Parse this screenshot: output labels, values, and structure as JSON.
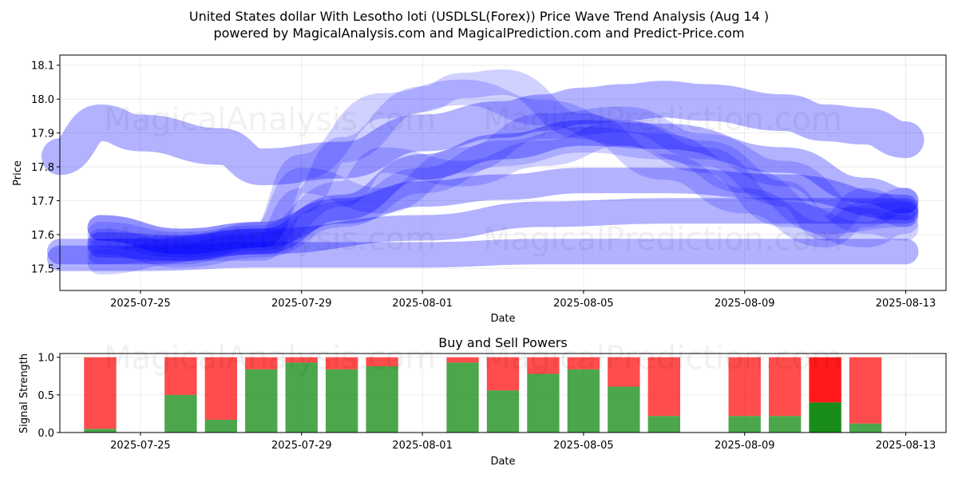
{
  "title_line1": "United States dollar With Lesotho loti (USDLSL(Forex)) Price Wave Trend Analysis (Aug 14 )",
  "title_line2": "powered by MagicalAnalysis.com and MagicalPrediction.com and Predict-Price.com",
  "watermarks": {
    "left": "MagicalAnalysis.com",
    "right": "MagicalPrediction.com"
  },
  "colors": {
    "wave": "#0000ff",
    "buy": "#008000",
    "sell": "#ff0000"
  },
  "chart_data": [
    {
      "type": "line",
      "title": "",
      "xlabel": "Date",
      "ylabel": "Price",
      "x_ticks": [
        "2025-07-25",
        "2025-07-29",
        "2025-08-01",
        "2025-08-05",
        "2025-08-09",
        "2025-08-13"
      ],
      "y_ticks": [
        17.5,
        17.6,
        17.7,
        17.8,
        17.9,
        18.0,
        18.1
      ],
      "xlim": [
        "2025-07-23",
        "2025-08-14"
      ],
      "ylim": [
        17.435,
        18.13
      ],
      "grid": true,
      "series": [
        {
          "opacity": 0.3,
          "x": [
            "2025-07-23",
            "2025-07-24",
            "2025-07-25",
            "2025-07-27",
            "2025-07-28",
            "2025-07-30",
            "2025-08-01",
            "2025-08-03",
            "2025-08-04",
            "2025-08-05",
            "2025-08-06",
            "2025-08-07",
            "2025-08-08",
            "2025-08-10",
            "2025-08-11",
            "2025-08-12",
            "2025-08-13"
          ],
          "y": [
            17.83,
            17.93,
            17.9,
            17.86,
            17.8,
            17.82,
            17.9,
            17.94,
            17.96,
            17.98,
            17.99,
            18.0,
            17.99,
            17.96,
            17.93,
            17.92,
            17.88
          ]
        },
        {
          "opacity": 0.3,
          "x": [
            "2025-07-23",
            "2025-07-25",
            "2025-07-28",
            "2025-08-01",
            "2025-08-04",
            "2025-08-07",
            "2025-08-10",
            "2025-08-13"
          ],
          "y": [
            17.55,
            17.55,
            17.58,
            17.62,
            17.66,
            17.67,
            17.67,
            17.67
          ]
        },
        {
          "opacity": 0.3,
          "x": [
            "2025-07-23",
            "2025-07-25",
            "2025-07-28",
            "2025-08-01",
            "2025-08-04",
            "2025-08-07",
            "2025-08-10",
            "2025-08-13"
          ],
          "y": [
            17.53,
            17.53,
            17.54,
            17.54,
            17.55,
            17.55,
            17.55,
            17.55
          ]
        },
        {
          "opacity": 0.3,
          "x": [
            "2025-07-24",
            "2025-07-26",
            "2025-07-28",
            "2025-07-30",
            "2025-08-01",
            "2025-08-03",
            "2025-08-05",
            "2025-08-07",
            "2025-08-10",
            "2025-08-13"
          ],
          "y": [
            17.62,
            17.58,
            17.6,
            17.67,
            17.72,
            17.74,
            17.76,
            17.76,
            17.74,
            17.68
          ]
        },
        {
          "opacity": 0.3,
          "x": [
            "2025-07-24",
            "2025-07-26",
            "2025-07-28",
            "2025-07-30",
            "2025-08-01",
            "2025-08-03",
            "2025-08-05",
            "2025-08-07",
            "2025-08-10",
            "2025-08-12",
            "2025-08-13"
          ],
          "y": [
            17.57,
            17.56,
            17.58,
            17.68,
            17.8,
            17.86,
            17.9,
            17.89,
            17.82,
            17.73,
            17.7
          ]
        },
        {
          "opacity": 0.18,
          "x": [
            "2025-07-24",
            "2025-07-26",
            "2025-07-28",
            "2025-07-29",
            "2025-07-31",
            "2025-08-02",
            "2025-08-04",
            "2025-08-06",
            "2025-08-08",
            "2025-08-10",
            "2025-08-12",
            "2025-08-13"
          ],
          "y": [
            17.62,
            17.58,
            17.6,
            17.8,
            17.98,
            18.02,
            17.96,
            17.9,
            17.82,
            17.66,
            17.6,
            17.64
          ]
        },
        {
          "opacity": 0.18,
          "x": [
            "2025-07-24",
            "2025-07-26",
            "2025-07-28",
            "2025-07-29",
            "2025-07-30",
            "2025-08-01",
            "2025-08-02",
            "2025-08-03",
            "2025-08-05",
            "2025-08-07",
            "2025-08-09",
            "2025-08-11",
            "2025-08-12",
            "2025-08-13"
          ],
          "y": [
            17.55,
            17.56,
            17.56,
            17.7,
            17.85,
            18.0,
            18.04,
            18.05,
            17.92,
            17.8,
            17.7,
            17.6,
            17.66,
            17.7
          ]
        },
        {
          "opacity": 0.18,
          "x": [
            "2025-07-24",
            "2025-07-26",
            "2025-07-28",
            "2025-07-30",
            "2025-07-31",
            "2025-08-02",
            "2025-08-04",
            "2025-08-06",
            "2025-08-08",
            "2025-08-10",
            "2025-08-11",
            "2025-08-12",
            "2025-08-13"
          ],
          "y": [
            17.6,
            17.57,
            17.59,
            17.72,
            17.82,
            17.78,
            17.84,
            17.9,
            17.84,
            17.72,
            17.62,
            17.7,
            17.66
          ]
        },
        {
          "opacity": 0.18,
          "x": [
            "2025-07-24",
            "2025-07-26",
            "2025-07-28",
            "2025-07-29",
            "2025-07-31",
            "2025-08-02",
            "2025-08-04",
            "2025-08-06",
            "2025-08-08",
            "2025-08-10",
            "2025-08-12",
            "2025-08-13"
          ],
          "y": [
            17.52,
            17.55,
            17.6,
            17.76,
            17.7,
            17.82,
            17.92,
            17.94,
            17.86,
            17.78,
            17.64,
            17.62
          ]
        },
        {
          "opacity": 0.18,
          "x": [
            "2025-07-24",
            "2025-07-26",
            "2025-07-28",
            "2025-07-30",
            "2025-08-01",
            "2025-08-03",
            "2025-08-05",
            "2025-08-07",
            "2025-08-09",
            "2025-08-11",
            "2025-08-13"
          ],
          "y": [
            17.58,
            17.54,
            17.57,
            17.66,
            17.76,
            17.84,
            17.88,
            17.86,
            17.76,
            17.64,
            17.66
          ]
        }
      ]
    },
    {
      "type": "bar",
      "title": "Buy and Sell Powers",
      "xlabel": "Date",
      "ylabel": "Signal Strength",
      "x_ticks": [
        "2025-07-25",
        "2025-07-29",
        "2025-08-01",
        "2025-08-05",
        "2025-08-09",
        "2025-08-13"
      ],
      "y_ticks": [
        0.0,
        0.5,
        1.0
      ],
      "ylim": [
        0,
        1.05
      ],
      "grid": true,
      "categories": [
        "2025-07-24",
        "2025-07-26",
        "2025-07-27",
        "2025-07-28",
        "2025-07-29",
        "2025-07-30",
        "2025-07-31",
        "2025-08-02",
        "2025-08-03",
        "2025-08-04",
        "2025-08-05",
        "2025-08-06",
        "2025-08-07",
        "2025-08-09",
        "2025-08-10",
        "2025-08-11",
        "2025-08-12"
      ],
      "buy": [
        0.05,
        0.5,
        0.17,
        0.84,
        0.93,
        0.84,
        0.88,
        0.93,
        0.56,
        0.78,
        0.84,
        0.61,
        0.22,
        0.22,
        0.22,
        0.4,
        0.12
      ],
      "sell": [
        0.95,
        0.5,
        0.83,
        0.16,
        0.07,
        0.16,
        0.12,
        0.07,
        0.44,
        0.22,
        0.16,
        0.39,
        0.78,
        0.78,
        0.78,
        0.6,
        0.88
      ]
    }
  ]
}
